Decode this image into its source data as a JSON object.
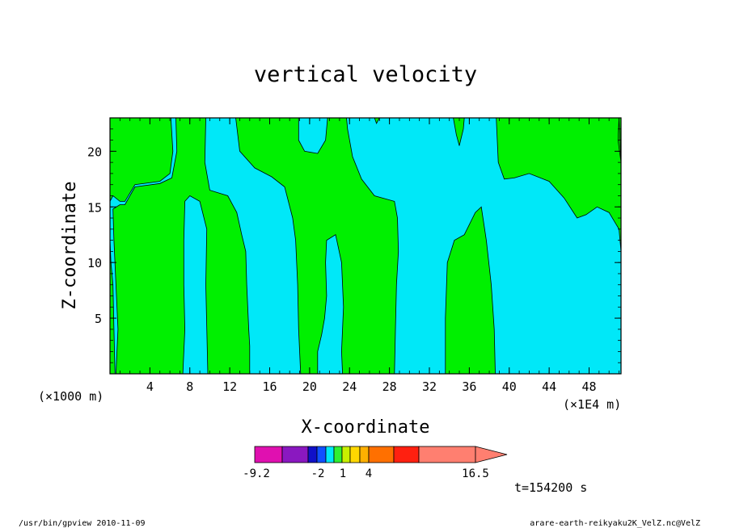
{
  "chart_data": {
    "type": "heatmap",
    "title": "vertical velocity",
    "xlabel": "X-coordinate",
    "ylabel": "Z-coordinate",
    "x_unit_left": "(×1000 m)",
    "x_unit_right": "(×1E4 m)",
    "xlim": [
      0,
      51.2
    ],
    "ylim": [
      0,
      23
    ],
    "xticks": [
      "4",
      "8",
      "12",
      "16",
      "20",
      "24",
      "28",
      "32",
      "36",
      "40",
      "44",
      "48"
    ],
    "yticks": [
      "5",
      "10",
      "15",
      "20"
    ],
    "time_label": "t=154200 s",
    "colorbar": {
      "colors": [
        "#e010b0",
        "#8a18c0",
        "#1010c8",
        "#1050ff",
        "#00e8f8",
        "#30f030",
        "#c8f000",
        "#ffd800",
        "#ffb000",
        "#ff7000",
        "#ff2010",
        "#ff7f70"
      ],
      "labels": [
        "-9.2",
        "-2",
        "1",
        "4",
        "16.5"
      ]
    },
    "contour_regions": {
      "colors": {
        "negative": "#00e8f8",
        "positive": "#00f000"
      },
      "green_regions": [
        [
          [
            0,
            0
          ],
          [
            0.5,
            0
          ],
          [
            0.4,
            4
          ],
          [
            0.3,
            8
          ],
          [
            0.1,
            10
          ],
          [
            0,
            12
          ],
          [
            0,
            15.5
          ],
          [
            0.3,
            16
          ],
          [
            1,
            15.5
          ],
          [
            1.5,
            15.5
          ],
          [
            2.5,
            17
          ],
          [
            5,
            17.3
          ],
          [
            6,
            18
          ],
          [
            6.3,
            20
          ],
          [
            6.1,
            23
          ],
          [
            0,
            23
          ]
        ],
        [
          [
            0.6,
            0
          ],
          [
            7.3,
            0
          ],
          [
            7.5,
            4
          ],
          [
            7.4,
            8
          ],
          [
            7.4,
            12
          ],
          [
            7.5,
            15.5
          ],
          [
            8,
            16
          ],
          [
            9,
            15.5
          ],
          [
            9.7,
            13
          ],
          [
            9.6,
            8
          ],
          [
            9.8,
            0
          ],
          [
            14,
            0
          ],
          [
            14,
            2.5
          ],
          [
            13.9,
            4
          ],
          [
            13.7,
            8
          ],
          [
            13.6,
            11
          ],
          [
            13.2,
            12.5
          ],
          [
            12.7,
            14.5
          ],
          [
            11.8,
            16
          ],
          [
            10,
            16.5
          ],
          [
            9.5,
            19
          ],
          [
            9.6,
            23
          ],
          [
            7.5,
            23
          ],
          [
            6.6,
            23
          ],
          [
            6.7,
            20
          ],
          [
            6.2,
            17.6
          ],
          [
            5,
            17.1
          ],
          [
            2.5,
            16.8
          ],
          [
            1.5,
            15.2
          ],
          [
            1,
            15.2
          ],
          [
            0.3,
            14.8
          ],
          [
            0.4,
            12
          ],
          [
            0.6,
            8
          ],
          [
            0.8,
            4
          ]
        ],
        [
          [
            12.6,
            23
          ],
          [
            13,
            20
          ],
          [
            14.5,
            18.5
          ],
          [
            16.2,
            17.7
          ],
          [
            17.5,
            16.8
          ],
          [
            18.3,
            14
          ],
          [
            18.6,
            12
          ],
          [
            18.8,
            8
          ],
          [
            18.9,
            4
          ],
          [
            19.1,
            0
          ],
          [
            20.8,
            0
          ],
          [
            20.8,
            2
          ],
          [
            21.2,
            3.5
          ],
          [
            21.5,
            5
          ],
          [
            21.7,
            7
          ],
          [
            21.6,
            10
          ],
          [
            21.7,
            12
          ],
          [
            22.6,
            12.5
          ],
          [
            23.2,
            10
          ],
          [
            23.4,
            6
          ],
          [
            23.2,
            2
          ],
          [
            23.3,
            0
          ],
          [
            28.5,
            0
          ],
          [
            28.6,
            4
          ],
          [
            28.7,
            8
          ],
          [
            28.9,
            11
          ],
          [
            28.8,
            14
          ],
          [
            28.5,
            15.5
          ],
          [
            26.5,
            16
          ],
          [
            25.2,
            17.5
          ],
          [
            24.3,
            19.5
          ],
          [
            23.8,
            22
          ],
          [
            23.7,
            23
          ],
          [
            21.8,
            23
          ],
          [
            21.6,
            21
          ],
          [
            20.8,
            19.8
          ],
          [
            19.5,
            20
          ],
          [
            18.9,
            21
          ],
          [
            18.9,
            23
          ]
        ],
        [
          [
            26.5,
            23
          ],
          [
            26.7,
            22.5
          ],
          [
            27,
            23
          ]
        ],
        [
          [
            34.4,
            23
          ],
          [
            34.7,
            21.5
          ],
          [
            35,
            20.5
          ],
          [
            35.4,
            22
          ],
          [
            35.5,
            23
          ]
        ],
        [
          [
            33.6,
            0
          ],
          [
            38.6,
            0
          ],
          [
            38.5,
            4
          ],
          [
            38.2,
            8
          ],
          [
            37.7,
            12
          ],
          [
            37.2,
            15
          ],
          [
            36.6,
            14.5
          ],
          [
            35.5,
            12.5
          ],
          [
            34.5,
            12
          ],
          [
            33.8,
            10
          ],
          [
            33.6,
            5
          ]
        ],
        [
          [
            38.7,
            23
          ],
          [
            38.9,
            19
          ],
          [
            39.5,
            17.5
          ],
          [
            40.5,
            17.6
          ],
          [
            42,
            18
          ],
          [
            44,
            17.3
          ],
          [
            45.5,
            15.8
          ],
          [
            46.8,
            14
          ],
          [
            47.7,
            14.3
          ],
          [
            48.8,
            15
          ],
          [
            50,
            14.5
          ],
          [
            51,
            13
          ],
          [
            51.2,
            11
          ],
          [
            51.2,
            23
          ]
        ],
        [
          [
            51.2,
            19
          ],
          [
            50.9,
            21
          ],
          [
            51,
            23
          ]
        ]
      ]
    }
  },
  "footer": {
    "left": "/usr/bin/gpview   2010-11-09",
    "right": "arare-earth-reikyaku2K_VelZ.nc@VelZ"
  }
}
